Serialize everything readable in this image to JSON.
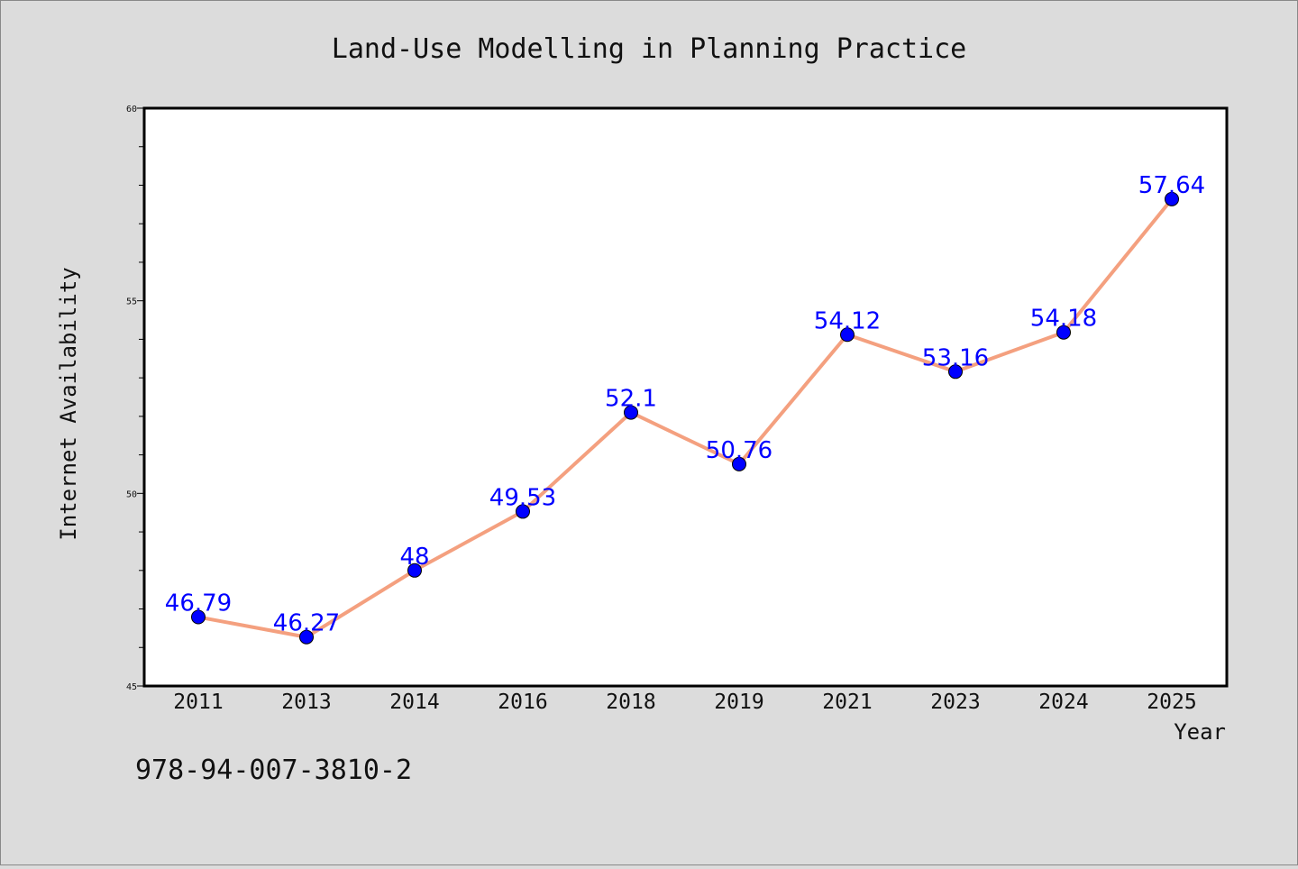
{
  "chart_data": {
    "type": "line",
    "title": "Land-Use Modelling in Planning Practice",
    "xlabel": "Year",
    "ylabel": "Internet Availability",
    "categories": [
      "2011",
      "2013",
      "2014",
      "2016",
      "2018",
      "2019",
      "2021",
      "2023",
      "2024",
      "2025"
    ],
    "series": [
      {
        "values": [
          46.79,
          46.27,
          48,
          49.53,
          52.1,
          50.76,
          54.12,
          53.16,
          54.18,
          57.64
        ],
        "data_labels": [
          "46.79",
          "46.27",
          "48",
          "49.53",
          "52.1",
          "50.76",
          "54.12",
          "53.16",
          "54.18",
          "57.64"
        ]
      }
    ],
    "ylim": [
      45,
      60
    ],
    "yticks": [
      "45",
      "50",
      "55",
      "60"
    ],
    "grid": false,
    "line_color": "#f4a07f",
    "marker_color": "#0000ff",
    "label_color": "#0000ff"
  },
  "footer": {
    "isbn": "978-94-007-3810-2"
  }
}
